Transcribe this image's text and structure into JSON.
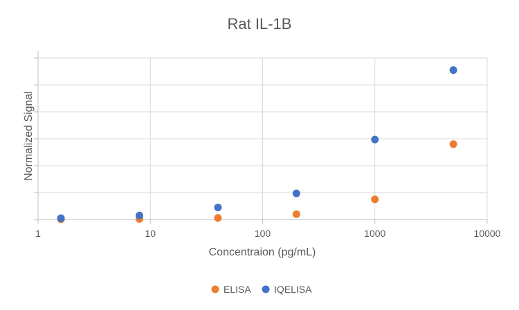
{
  "chart_data": {
    "type": "scatter",
    "title": "Rat IL-1B",
    "xlabel": "Concentraion (pg/mL)",
    "ylabel": "Normalized Signal",
    "x_scale": "log",
    "xlim": [
      1,
      10000
    ],
    "x_ticks": [
      "1",
      "10",
      "100",
      "1000",
      "10000"
    ],
    "ylim": [
      0,
      6
    ],
    "y_tick_values": [
      0,
      1,
      2,
      3,
      4,
      5,
      6
    ],
    "y_tick_labels_shown": false,
    "grid": true,
    "legend_position": "bottom",
    "series": [
      {
        "name": "ELISA",
        "color": "#ED7D31",
        "points": [
          {
            "x": 1.6,
            "y": 0.01
          },
          {
            "x": 8,
            "y": 0.02
          },
          {
            "x": 40,
            "y": 0.06
          },
          {
            "x": 200,
            "y": 0.2
          },
          {
            "x": 1000,
            "y": 0.75
          },
          {
            "x": 5000,
            "y": 2.8
          }
        ]
      },
      {
        "name": "IQELISA",
        "color": "#4472C4",
        "points": [
          {
            "x": 1.6,
            "y": 0.05
          },
          {
            "x": 8,
            "y": 0.15
          },
          {
            "x": 40,
            "y": 0.45
          },
          {
            "x": 200,
            "y": 0.97
          },
          {
            "x": 1000,
            "y": 2.97
          },
          {
            "x": 5000,
            "y": 5.55
          }
        ]
      }
    ]
  }
}
